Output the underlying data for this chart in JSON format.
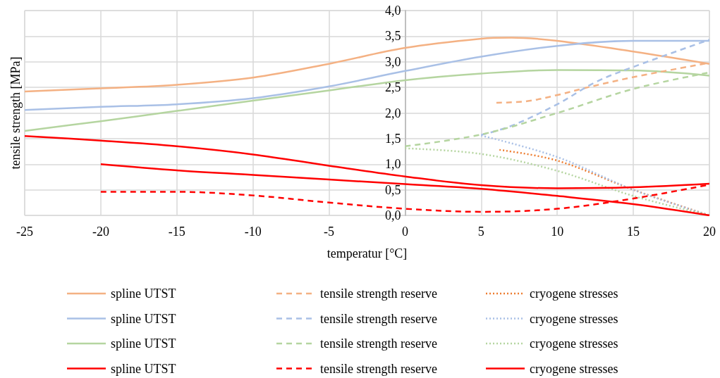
{
  "chart_data": {
    "type": "line",
    "xlabel": "temperatur [°C]",
    "ylabel": "tensile strength [MPa]",
    "xlim": [
      -25,
      20
    ],
    "xticks": [
      -25,
      -20,
      -15,
      -10,
      -5,
      0,
      5,
      10,
      15,
      20
    ],
    "ylim": [
      0,
      4
    ],
    "yticks": [
      {
        "value": 0,
        "label": "0,0"
      },
      {
        "value": 0.5,
        "label": "0,5"
      },
      {
        "value": 1,
        "label": "1,0"
      },
      {
        "value": 1.5,
        "label": "1,5"
      },
      {
        "value": 2,
        "label": "2,0"
      },
      {
        "value": 2.5,
        "label": "2,5"
      },
      {
        "value": 3,
        "label": "3,0"
      },
      {
        "value": 3.5,
        "label": "3,5"
      },
      {
        "value": 4,
        "label": "4,0"
      }
    ],
    "grid": true,
    "legend": "bottom",
    "marker": "none",
    "series": [
      {
        "name": "spline UTST",
        "color": "#f4b183",
        "line_style": "solid",
        "x": [
          -25,
          -20,
          -15,
          -10,
          -5,
          0,
          5,
          7,
          10,
          15,
          20
        ],
        "values": [
          2.42,
          2.48,
          2.55,
          2.69,
          2.96,
          3.27,
          3.45,
          3.47,
          3.41,
          3.2,
          2.96
        ]
      },
      {
        "name": "spline UTST",
        "color": "#a9c0e6",
        "line_style": "solid",
        "x": [
          -25,
          -20,
          -15,
          -10,
          -5,
          0,
          5,
          10,
          15,
          20
        ],
        "values": [
          2.06,
          2.12,
          2.17,
          2.29,
          2.52,
          2.82,
          3.1,
          3.31,
          3.41,
          3.41
        ]
      },
      {
        "name": "spline UTST",
        "color": "#b5d5a0",
        "line_style": "solid",
        "x": [
          -25,
          -20,
          -15,
          -10,
          -5,
          0,
          5,
          10,
          15,
          20
        ],
        "values": [
          1.65,
          1.84,
          2.04,
          2.24,
          2.44,
          2.64,
          2.77,
          2.84,
          2.83,
          2.73
        ]
      },
      {
        "name": "spline UTST",
        "color": "#ff0000",
        "line_style": "solid",
        "x": [
          -25,
          -20,
          -15,
          -10,
          -5,
          0,
          5,
          10,
          15,
          20
        ],
        "values": [
          1.55,
          1.46,
          1.35,
          1.19,
          0.97,
          0.76,
          0.59,
          0.53,
          0.55,
          0.62
        ]
      },
      {
        "name": "tensile strength reserve",
        "color": "#f4b183",
        "line_style": "dashed",
        "x": [
          6,
          8,
          10,
          12,
          15,
          20
        ],
        "values": [
          2.2,
          2.23,
          2.35,
          2.5,
          2.7,
          2.98
        ]
      },
      {
        "name": "tensile strength reserve",
        "color": "#a9c0e6",
        "line_style": "dashed",
        "x": [
          5,
          7,
          10,
          12.5,
          15,
          20
        ],
        "values": [
          1.57,
          1.75,
          2.17,
          2.6,
          2.9,
          3.43
        ]
      },
      {
        "name": "tensile strength reserve",
        "color": "#b5d5a0",
        "line_style": "dashed",
        "x": [
          0,
          5,
          10,
          15,
          20
        ],
        "values": [
          1.35,
          1.58,
          2.0,
          2.47,
          2.79
        ]
      },
      {
        "name": "tensile strength reserve",
        "color": "#ff0000",
        "line_style": "dashed",
        "x": [
          -20,
          -15,
          -10,
          -5,
          0,
          5,
          10,
          15,
          20
        ],
        "values": [
          0.46,
          0.46,
          0.39,
          0.25,
          0.13,
          0.07,
          0.13,
          0.33,
          0.6
        ]
      },
      {
        "name": "cryogene stresses",
        "color": "#ed7d31",
        "line_style": "dotted",
        "x": [
          6.2,
          10,
          15,
          20
        ],
        "values": [
          1.28,
          1.07,
          0.5,
          0
        ]
      },
      {
        "name": "cryogene stresses",
        "color": "#a9c0e6",
        "line_style": "dotted",
        "x": [
          5,
          10,
          15,
          20
        ],
        "values": [
          1.56,
          1.14,
          0.5,
          0
        ]
      },
      {
        "name": "cryogene stresses",
        "color": "#b5d5a0",
        "line_style": "dotted",
        "x": [
          0,
          5,
          10,
          15,
          20
        ],
        "values": [
          1.31,
          1.2,
          0.87,
          0.38,
          0
        ]
      },
      {
        "name": "cryogene stresses",
        "color": "#ff0000",
        "line_style": "solid",
        "x": [
          -20,
          -15,
          -10,
          -5,
          0,
          5,
          10,
          15,
          20
        ],
        "values": [
          1.0,
          0.88,
          0.79,
          0.7,
          0.61,
          0.52,
          0.38,
          0.22,
          0
        ]
      }
    ]
  }
}
